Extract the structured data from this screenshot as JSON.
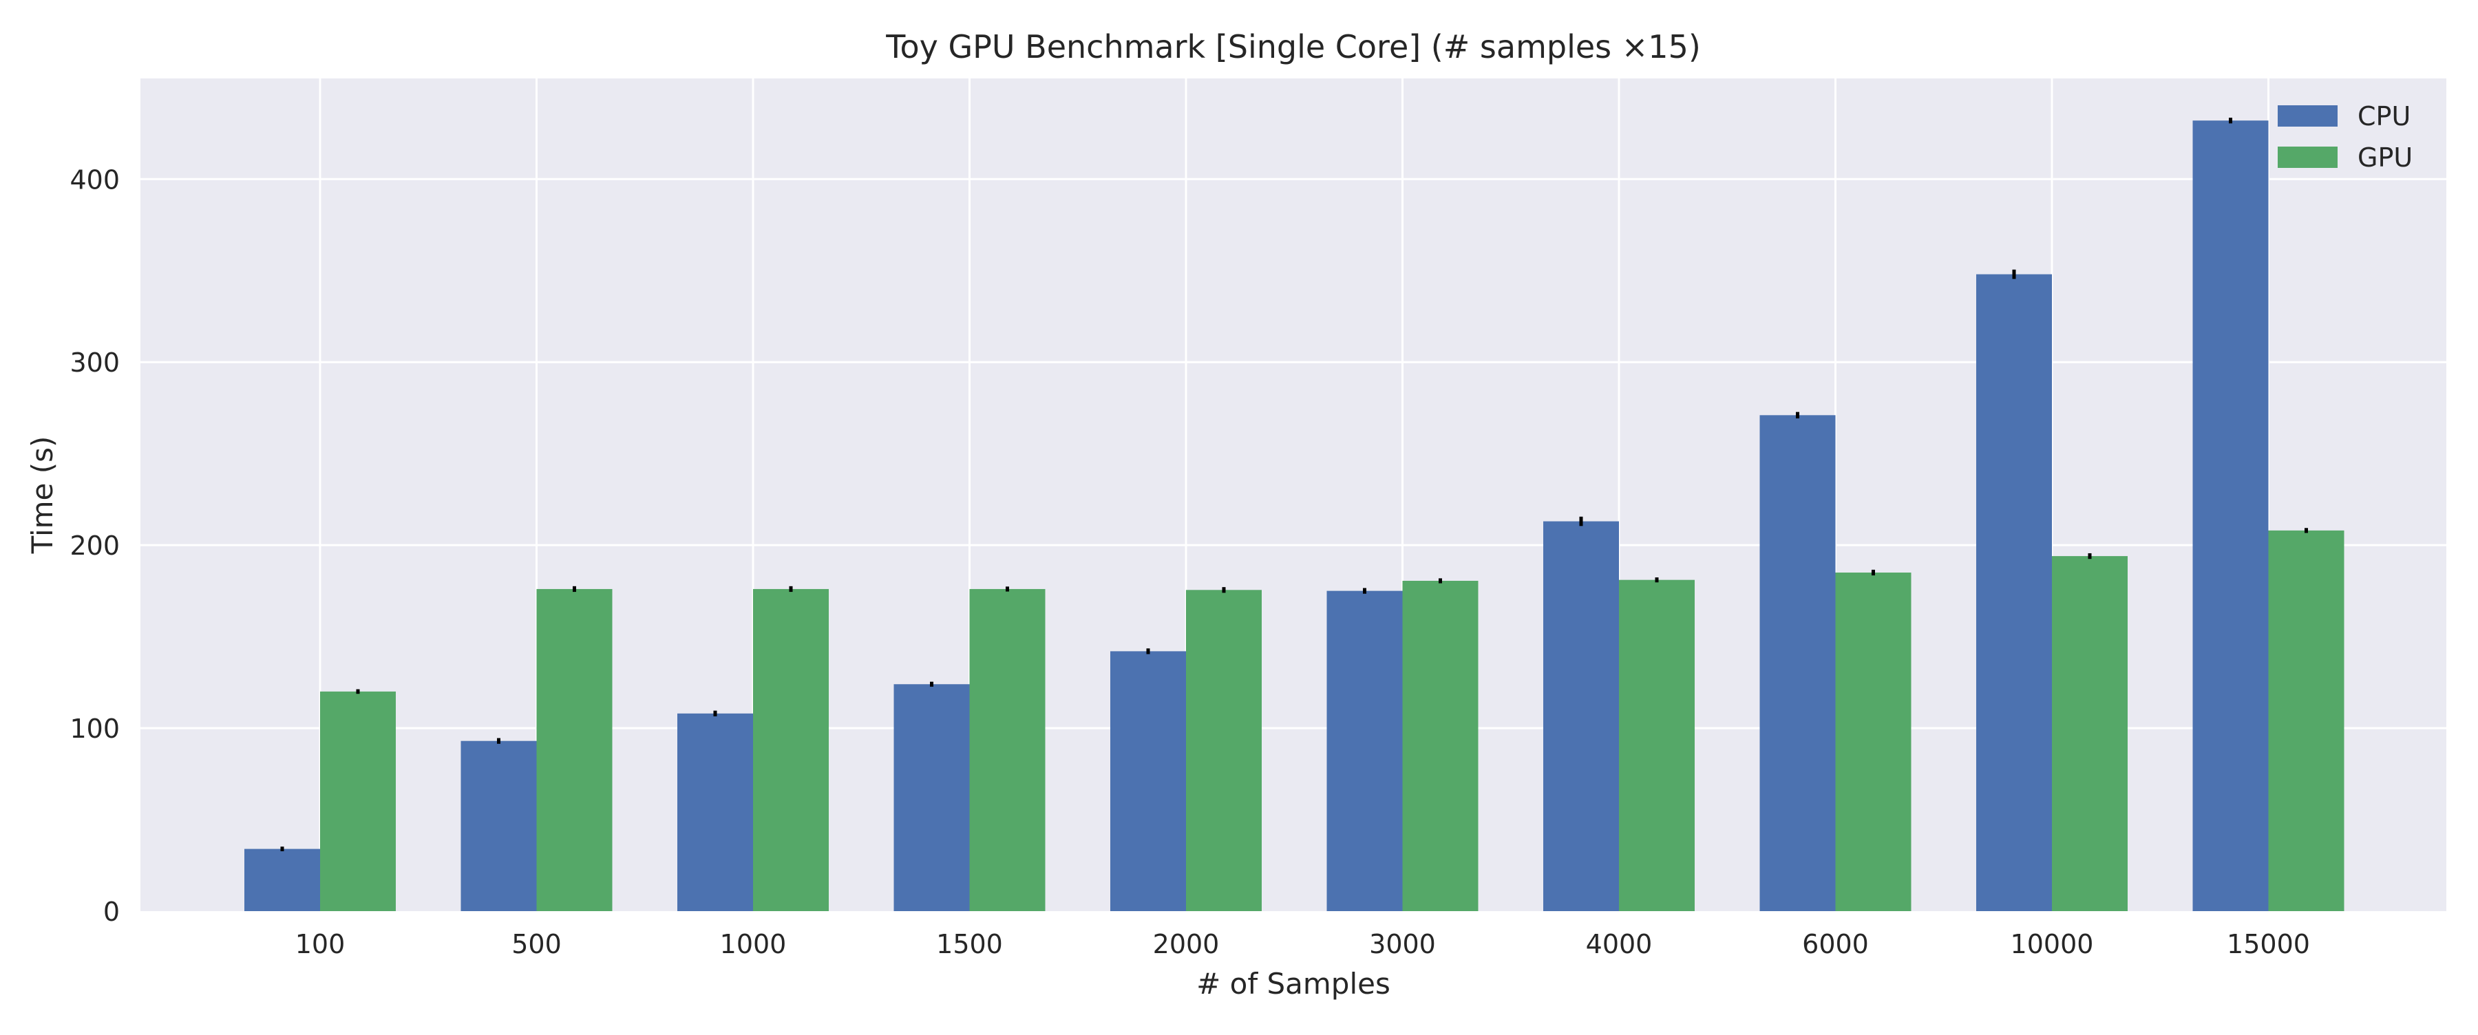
{
  "chart_data": {
    "type": "bar",
    "title": "Toy GPU Benchmark [Single Core] (# samples ×15)",
    "xlabel": "# of Samples",
    "ylabel": "Time (s)",
    "categories": [
      "100",
      "500",
      "1000",
      "1500",
      "2000",
      "3000",
      "4000",
      "6000",
      "10000",
      "15000"
    ],
    "series": [
      {
        "name": "CPU",
        "color": "#4C72B0",
        "values": [
          34,
          93,
          108,
          124,
          142,
          175,
          213,
          271,
          348,
          432
        ],
        "errors": [
          0.5,
          0.8,
          0.8,
          0.6,
          0.8,
          0.8,
          1.8,
          1.0,
          1.8,
          0.8
        ]
      },
      {
        "name": "GPU",
        "color": "#55A868",
        "values": [
          120,
          176,
          176,
          176,
          175.5,
          180.5,
          181,
          185,
          194,
          208
        ],
        "errors": [
          0.5,
          0.8,
          0.8,
          0.6,
          0.8,
          0.6,
          0.6,
          0.8,
          0.8,
          0.6
        ]
      }
    ],
    "ylim": [
      0,
      455
    ],
    "yticks": [
      0,
      100,
      200,
      300,
      400
    ],
    "grid": true,
    "legend": "top-right",
    "colors": {
      "background": "#EAEAF2",
      "grid": "#FFFFFF",
      "error_bar": "#000000"
    }
  }
}
